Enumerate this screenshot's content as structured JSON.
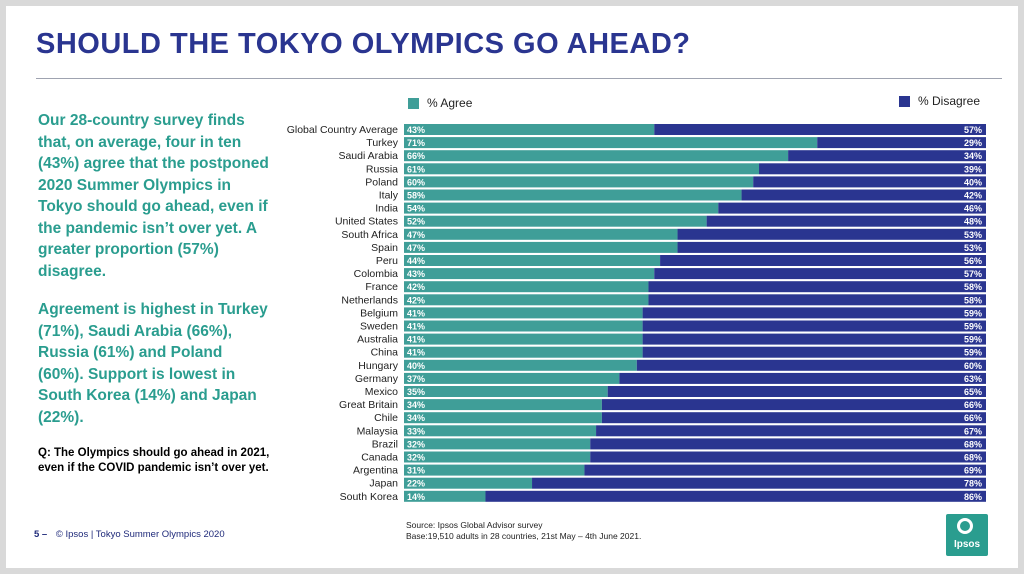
{
  "title": "SHOULD THE TOKYO OLYMPICS GO AHEAD?",
  "summary": {
    "paragraph1": "Our 28-country survey finds that, on average, four in ten (43%) agree that the postponed 2020 Summer Olympics in Tokyo should go ahead, even if the pandemic isn’t over yet. A greater proportion (57%) disagree.",
    "paragraph2": "Agreement is highest in Turkey (71%), Saudi Arabia (66%), Russia (61%) and Poland (60%). Support is lowest in South Korea (14%) and Japan (22%)."
  },
  "question": {
    "prefix": "Q",
    "text": ": The Olympics should go ahead in 2021, even if the COVID pandemic isn’t over yet."
  },
  "footer": {
    "page": "5 –",
    "text": "© Ipsos | Tokyo Summer Olympics 2020"
  },
  "source": {
    "line1": "Source: Ipsos Global Advisor survey",
    "line2": "Base:19,510 adults in 28 countries, 21st May – 4th June 2021."
  },
  "logo": {
    "text": "Ipsos"
  },
  "colors": {
    "title": "#2a3590",
    "summary": "#2a9d8f",
    "agree": "#3f9e98",
    "disagree": "#2a3590"
  },
  "chart_data": {
    "type": "bar",
    "orientation": "horizontal",
    "stacked": true,
    "xlim": [
      0,
      100
    ],
    "legend_placement": "top",
    "categories": [
      "Global Country Average",
      "Turkey",
      "Saudi Arabia",
      "Russia",
      "Poland",
      "Italy",
      "India",
      "United States",
      "South Africa",
      "Spain",
      "Peru",
      "Colombia",
      "France",
      "Netherlands",
      "Belgium",
      "Sweden",
      "Australia",
      "China",
      "Hungary",
      "Germany",
      "Mexico",
      "Great Britain",
      "Chile",
      "Malaysia",
      "Brazil",
      "Canada",
      "Argentina",
      "Japan",
      "South Korea"
    ],
    "series": [
      {
        "name": "% Agree",
        "values": [
          43,
          71,
          66,
          61,
          60,
          58,
          54,
          52,
          47,
          47,
          44,
          43,
          42,
          42,
          41,
          41,
          41,
          41,
          40,
          37,
          35,
          34,
          34,
          33,
          32,
          32,
          31,
          22,
          14
        ]
      },
      {
        "name": "% Disagree",
        "values": [
          57,
          29,
          34,
          39,
          40,
          42,
          46,
          48,
          53,
          53,
          56,
          57,
          58,
          58,
          59,
          59,
          59,
          59,
          60,
          63,
          65,
          66,
          66,
          67,
          68,
          68,
          69,
          78,
          86
        ]
      }
    ]
  }
}
